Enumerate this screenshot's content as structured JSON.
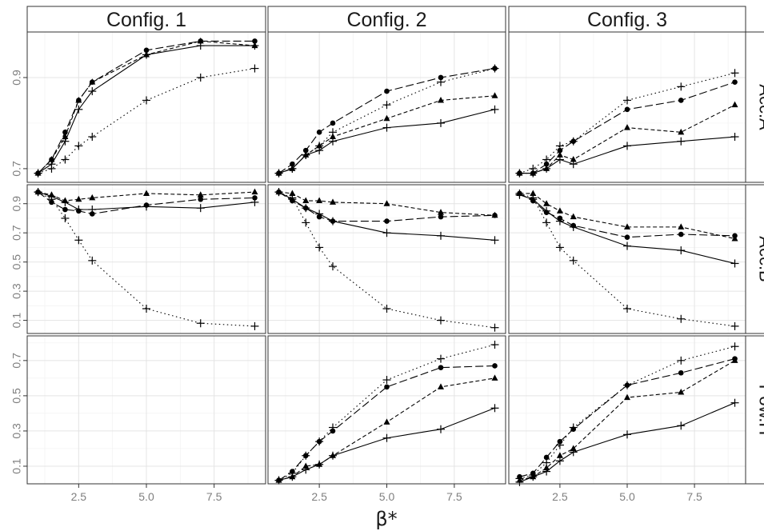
{
  "chart_data": {
    "type": "line",
    "column_strips": [
      "Config. 1",
      "Config. 2",
      "Config. 3"
    ],
    "row_strips": [
      "Acc.A",
      "Acc.B",
      "Pow.H"
    ],
    "xlabel": "β*",
    "x": [
      1,
      1.5,
      2,
      2.5,
      3,
      5,
      7,
      9
    ],
    "x_ticks": [
      2.5,
      5.0,
      7.5
    ],
    "x_tick_labels": [
      "2.5",
      "5.0",
      "7.5"
    ],
    "xlim": [
      0.6,
      9.4
    ],
    "grid": true,
    "legend": "none",
    "series_styles": [
      {
        "marker": "plus",
        "line": "solid"
      },
      {
        "marker": "triangle",
        "line": "dashed"
      },
      {
        "marker": "circle",
        "line": "longdash"
      },
      {
        "marker": "plus",
        "line": "dotted"
      }
    ],
    "rows": [
      {
        "ylim": [
          0.67,
          1.0
        ],
        "y_ticks": [
          0.7,
          0.9
        ],
        "y_tick_labels": [
          "0.7",
          "0.9"
        ],
        "panels": [
          {
            "series": [
              {
                "values": [
                  0.69,
                  0.71,
                  0.76,
                  0.83,
                  0.87,
                  0.95,
                  0.97,
                  0.97
                ]
              },
              {
                "values": [
                  0.69,
                  0.72,
                  0.77,
                  0.85,
                  0.89,
                  0.95,
                  0.98,
                  0.97
                ]
              },
              {
                "values": [
                  0.69,
                  0.72,
                  0.78,
                  0.85,
                  0.89,
                  0.96,
                  0.98,
                  0.98
                ]
              },
              {
                "values": [
                  0.69,
                  0.7,
                  0.72,
                  0.75,
                  0.77,
                  0.85,
                  0.9,
                  0.92
                ]
              }
            ]
          },
          {
            "series": [
              {
                "values": [
                  0.69,
                  0.7,
                  0.73,
                  0.74,
                  0.76,
                  0.79,
                  0.8,
                  0.83
                ]
              },
              {
                "values": [
                  0.69,
                  0.7,
                  0.73,
                  0.75,
                  0.77,
                  0.81,
                  0.85,
                  0.86
                ]
              },
              {
                "values": [
                  0.69,
                  0.71,
                  0.74,
                  0.78,
                  0.8,
                  0.87,
                  0.9,
                  0.92
                ]
              },
              {
                "values": [
                  0.69,
                  0.7,
                  0.73,
                  0.75,
                  0.78,
                  0.84,
                  0.89,
                  0.92
                ]
              }
            ]
          },
          {
            "series": [
              {
                "values": [
                  0.69,
                  0.69,
                  0.7,
                  0.72,
                  0.71,
                  0.75,
                  0.76,
                  0.77
                ]
              },
              {
                "values": [
                  0.69,
                  0.69,
                  0.7,
                  0.73,
                  0.72,
                  0.79,
                  0.78,
                  0.84
                ]
              },
              {
                "values": [
                  0.69,
                  0.69,
                  0.71,
                  0.74,
                  0.76,
                  0.83,
                  0.85,
                  0.89
                ]
              },
              {
                "values": [
                  0.69,
                  0.7,
                  0.72,
                  0.75,
                  0.76,
                  0.85,
                  0.88,
                  0.91
                ]
              }
            ]
          }
        ]
      },
      {
        "ylim": [
          0.01,
          1.03
        ],
        "y_ticks": [
          0.1,
          0.3,
          0.5,
          0.7,
          0.9
        ],
        "y_tick_labels": [
          "0.1",
          "0.3",
          "0.5",
          "0.7",
          "0.9"
        ],
        "panels": [
          {
            "series": [
              {
                "values": [
                  0.98,
                  0.95,
                  0.91,
                  0.86,
                  0.86,
                  0.88,
                  0.87,
                  0.91
                ]
              },
              {
                "values": [
                  0.98,
                  0.96,
                  0.92,
                  0.93,
                  0.94,
                  0.97,
                  0.96,
                  0.98
                ]
              },
              {
                "values": [
                  0.98,
                  0.91,
                  0.86,
                  0.85,
                  0.83,
                  0.89,
                  0.93,
                  0.94
                ]
              },
              {
                "values": [
                  0.98,
                  0.93,
                  0.8,
                  0.65,
                  0.51,
                  0.18,
                  0.08,
                  0.06
                ]
              }
            ]
          },
          {
            "series": [
              {
                "values": [
                  0.98,
                  0.93,
                  0.87,
                  0.83,
                  0.78,
                  0.7,
                  0.68,
                  0.65
                ]
              },
              {
                "values": [
                  0.98,
                  0.97,
                  0.92,
                  0.92,
                  0.91,
                  0.9,
                  0.84,
                  0.82
                ]
              },
              {
                "values": [
                  0.98,
                  0.92,
                  0.87,
                  0.81,
                  0.78,
                  0.78,
                  0.81,
                  0.82
                ]
              },
              {
                "values": [
                  0.98,
                  0.94,
                  0.77,
                  0.6,
                  0.47,
                  0.18,
                  0.1,
                  0.05
                ]
              }
            ]
          },
          {
            "series": [
              {
                "values": [
                  0.96,
                  0.93,
                  0.85,
                  0.78,
                  0.74,
                  0.61,
                  0.58,
                  0.49
                ]
              },
              {
                "values": [
                  0.97,
                  0.97,
                  0.9,
                  0.85,
                  0.81,
                  0.74,
                  0.74,
                  0.66
                ]
              },
              {
                "values": [
                  0.97,
                  0.92,
                  0.84,
                  0.8,
                  0.75,
                  0.67,
                  0.69,
                  0.68
                ]
              },
              {
                "values": [
                  0.97,
                  0.94,
                  0.77,
                  0.6,
                  0.51,
                  0.18,
                  0.11,
                  0.06
                ]
              }
            ]
          }
        ]
      },
      {
        "ylim": [
          0.0,
          0.84
        ],
        "y_ticks": [
          0.1,
          0.3,
          0.5,
          0.7
        ],
        "y_tick_labels": [
          "0.1",
          "0.3",
          "0.5",
          "0.7"
        ],
        "panels": [
          {
            "series": []
          },
          {
            "series": [
              {
                "values": [
                  0.02,
                  0.04,
                  0.08,
                  0.11,
                  0.16,
                  0.26,
                  0.31,
                  0.43
                ]
              },
              {
                "values": [
                  0.02,
                  0.04,
                  0.1,
                  0.11,
                  0.16,
                  0.35,
                  0.55,
                  0.6
                ]
              },
              {
                "values": [
                  0.02,
                  0.07,
                  0.16,
                  0.24,
                  0.3,
                  0.55,
                  0.66,
                  0.67
                ]
              },
              {
                "values": [
                  0.02,
                  0.06,
                  0.16,
                  0.24,
                  0.32,
                  0.59,
                  0.71,
                  0.79
                ]
              }
            ]
          },
          {
            "series": [
              {
                "values": [
                  0.01,
                  0.04,
                  0.07,
                  0.13,
                  0.18,
                  0.28,
                  0.33,
                  0.46
                ]
              },
              {
                "values": [
                  0.02,
                  0.04,
                  0.09,
                  0.16,
                  0.2,
                  0.49,
                  0.52,
                  0.7
                ]
              },
              {
                "values": [
                  0.04,
                  0.06,
                  0.15,
                  0.24,
                  0.31,
                  0.56,
                  0.63,
                  0.71
                ]
              },
              {
                "values": [
                  0.03,
                  0.05,
                  0.12,
                  0.22,
                  0.32,
                  0.56,
                  0.7,
                  0.78
                ]
              }
            ]
          }
        ]
      }
    ]
  }
}
